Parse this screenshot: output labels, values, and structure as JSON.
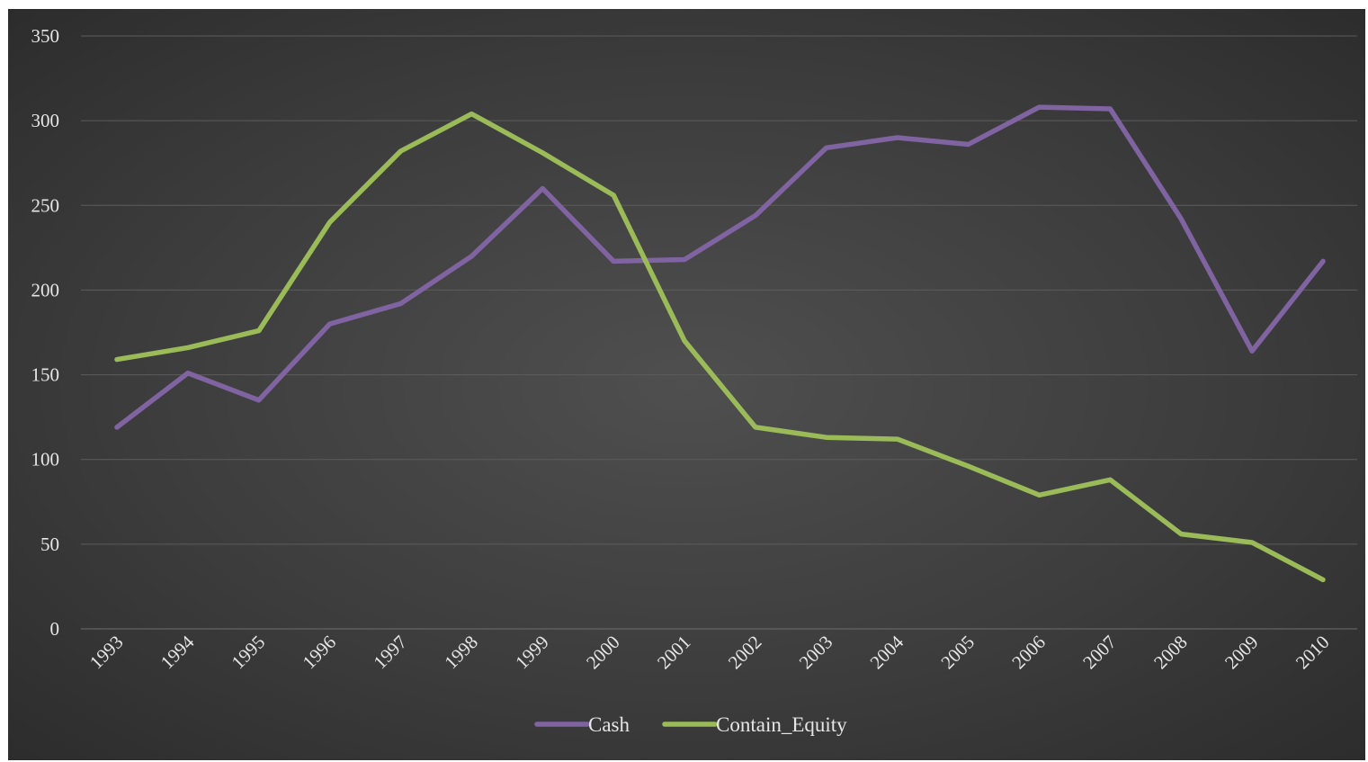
{
  "chart_data": {
    "type": "line",
    "categories": [
      "1993",
      "1994",
      "1995",
      "1996",
      "1997",
      "1998",
      "1999",
      "2000",
      "2001",
      "2002",
      "2003",
      "2004",
      "2005",
      "2006",
      "2007",
      "2008",
      "2009",
      "2010"
    ],
    "series": [
      {
        "name": "Cash",
        "color": "#8064a2",
        "values": [
          119,
          151,
          135,
          180,
          192,
          220,
          260,
          217,
          218,
          244,
          284,
          290,
          286,
          308,
          307,
          242,
          164,
          217
        ]
      },
      {
        "name": "Contain_Equity",
        "color": "#9bbb59",
        "values": [
          159,
          166,
          176,
          240,
          282,
          304,
          281,
          256,
          170,
          119,
          113,
          112,
          96,
          79,
          88,
          56,
          51,
          29
        ]
      }
    ],
    "ylim": [
      0,
      350
    ],
    "yticks": [
      0,
      50,
      100,
      150,
      200,
      250,
      300,
      350
    ],
    "grid": true,
    "legend_position": "bottom",
    "background": "dark-radial-gradient"
  }
}
